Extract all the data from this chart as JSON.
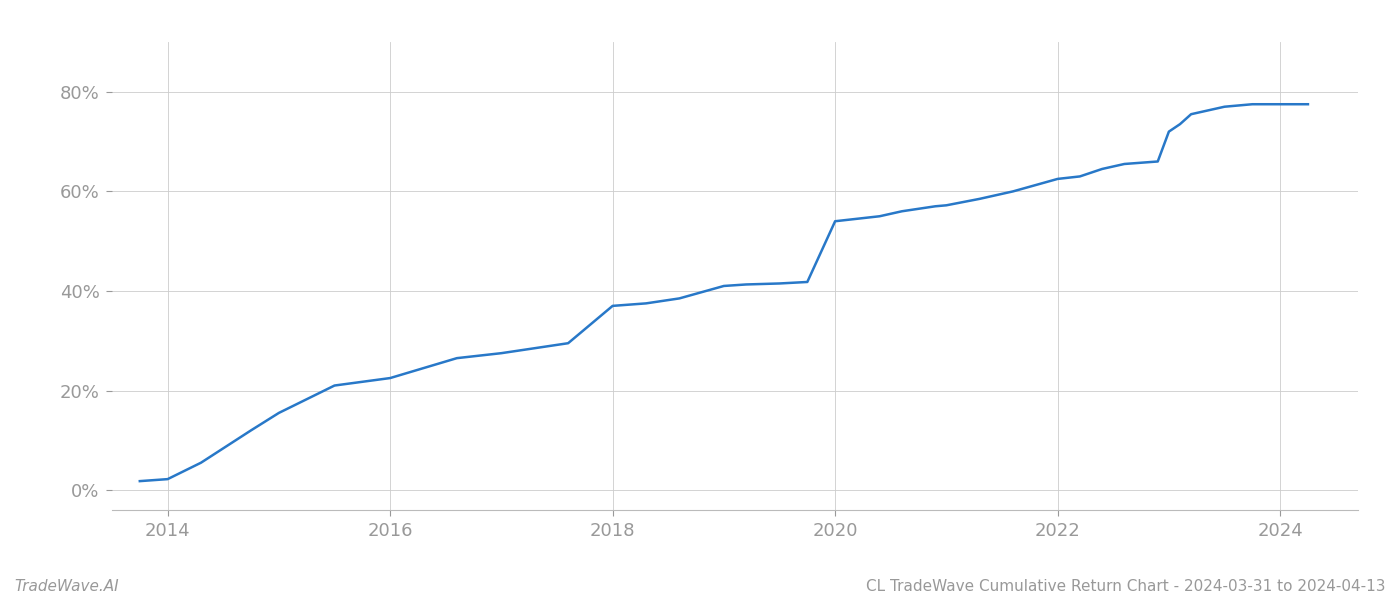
{
  "x_years": [
    2013.75,
    2014.0,
    2014.3,
    2014.75,
    2015.0,
    2015.5,
    2016.0,
    2016.3,
    2016.6,
    2017.0,
    2017.3,
    2017.6,
    2018.0,
    2018.3,
    2018.6,
    2019.0,
    2019.2,
    2019.5,
    2019.75,
    2020.0,
    2020.2,
    2020.4,
    2020.6,
    2020.9,
    2021.0,
    2021.3,
    2021.6,
    2022.0,
    2022.2,
    2022.4,
    2022.6,
    2022.9,
    2023.0,
    2023.1,
    2023.2,
    2023.5,
    2023.75,
    2024.0,
    2024.25
  ],
  "y_values": [
    0.018,
    0.022,
    0.055,
    0.12,
    0.155,
    0.21,
    0.225,
    0.245,
    0.265,
    0.275,
    0.285,
    0.295,
    0.37,
    0.375,
    0.385,
    0.41,
    0.413,
    0.415,
    0.418,
    0.54,
    0.545,
    0.55,
    0.56,
    0.57,
    0.572,
    0.585,
    0.6,
    0.625,
    0.63,
    0.645,
    0.655,
    0.66,
    0.72,
    0.735,
    0.755,
    0.77,
    0.775,
    0.775,
    0.775
  ],
  "line_color": "#2878c8",
  "line_width": 1.8,
  "background_color": "#ffffff",
  "grid_color": "#cccccc",
  "title": "CL TradeWave Cumulative Return Chart - 2024-03-31 to 2024-04-13",
  "watermark": "TradeWave.AI",
  "xlim": [
    2013.5,
    2024.7
  ],
  "ylim": [
    -0.04,
    0.9
  ],
  "xticks": [
    2014,
    2016,
    2018,
    2020,
    2022,
    2024
  ],
  "yticks": [
    0.0,
    0.2,
    0.4,
    0.6,
    0.8
  ],
  "ytick_labels": [
    "0%",
    "20%",
    "40%",
    "60%",
    "80%"
  ],
  "xtick_labels": [
    "2014",
    "2016",
    "2018",
    "2020",
    "2022",
    "2024"
  ],
  "tick_color": "#999999",
  "title_fontsize": 11,
  "watermark_fontsize": 11,
  "tick_fontsize": 13,
  "spine_color": "#bbbbbb"
}
